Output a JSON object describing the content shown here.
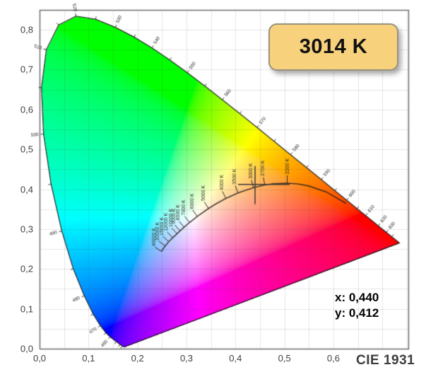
{
  "badge": {
    "label": "3014 K"
  },
  "readout": {
    "x": "x: 0,440",
    "y": "y: 0,412"
  },
  "caption": "CIE 1931",
  "colors": {
    "badge_fill": "#f7d17c",
    "badge_border": "#98927e",
    "grid": "rgba(80,80,80,0.14)",
    "plot_border": "#6f6f6f",
    "locus_outline": "rgba(25,25,25,0.88)",
    "planckian_curve": "rgba(45,38,30,0.85)",
    "wavelength_text": "#262626",
    "cct_text": "#2f2a24",
    "marker": "#3a3a3a"
  },
  "chart_data": {
    "type": "heatmap",
    "subtype": "cie-1931-xy-chromaticity-diagram",
    "title": "CIE 1931",
    "xlabel": "",
    "ylabel": "",
    "grid": true,
    "grid_step": 0.05,
    "x_axis": {
      "range": [
        0,
        0.753
      ],
      "tick_values": [
        0,
        0.1,
        0.2,
        0.3,
        0.4,
        0.5,
        0.6
      ],
      "tick_labels": [
        "0,0",
        "0,1",
        "0,2",
        "0,3",
        "0,4",
        "0,5",
        "0,6"
      ]
    },
    "y_axis": {
      "range": [
        0,
        0.85
      ],
      "tick_values": [
        0,
        0.1,
        0.2,
        0.3,
        0.4,
        0.5,
        0.6,
        0.7,
        0.8
      ],
      "tick_labels": [
        "0,0",
        "0,1",
        "0,2",
        "0,3",
        "0,4",
        "0,5",
        "0,6",
        "0,7",
        "0,8"
      ]
    },
    "spectral_locus": [
      [
        380,
        0.1741,
        0.005
      ],
      [
        390,
        0.1738,
        0.0049
      ],
      [
        400,
        0.1733,
        0.0048
      ],
      [
        410,
        0.1726,
        0.0048
      ],
      [
        420,
        0.1714,
        0.0051
      ],
      [
        430,
        0.1689,
        0.0069
      ],
      [
        440,
        0.1644,
        0.0109
      ],
      [
        450,
        0.1566,
        0.0177
      ],
      [
        460,
        0.144,
        0.0297
      ],
      [
        465,
        0.1355,
        0.0399
      ],
      [
        470,
        0.1241,
        0.0578
      ],
      [
        475,
        0.1096,
        0.0868
      ],
      [
        480,
        0.0913,
        0.1327
      ],
      [
        485,
        0.0687,
        0.2007
      ],
      [
        490,
        0.0454,
        0.295
      ],
      [
        495,
        0.0235,
        0.4127
      ],
      [
        500,
        0.0082,
        0.5384
      ],
      [
        505,
        0.0039,
        0.6548
      ],
      [
        510,
        0.0139,
        0.7502
      ],
      [
        515,
        0.0389,
        0.812
      ],
      [
        520,
        0.0743,
        0.8338
      ],
      [
        525,
        0.1142,
        0.8262
      ],
      [
        530,
        0.1547,
        0.8059
      ],
      [
        535,
        0.1929,
        0.7816
      ],
      [
        540,
        0.2296,
        0.7543
      ],
      [
        545,
        0.2658,
        0.7243
      ],
      [
        550,
        0.3016,
        0.6923
      ],
      [
        555,
        0.3373,
        0.6589
      ],
      [
        560,
        0.3731,
        0.6245
      ],
      [
        565,
        0.4087,
        0.5896
      ],
      [
        570,
        0.4441,
        0.5547
      ],
      [
        575,
        0.4788,
        0.5202
      ],
      [
        580,
        0.5125,
        0.4866
      ],
      [
        585,
        0.5448,
        0.4544
      ],
      [
        590,
        0.5752,
        0.4242
      ],
      [
        595,
        0.6029,
        0.3965
      ],
      [
        600,
        0.627,
        0.3725
      ],
      [
        605,
        0.6482,
        0.3514
      ],
      [
        610,
        0.6658,
        0.334
      ],
      [
        620,
        0.6915,
        0.3083
      ],
      [
        630,
        0.708,
        0.292
      ],
      [
        640,
        0.719,
        0.2809
      ],
      [
        650,
        0.726,
        0.274
      ],
      [
        700,
        0.7347,
        0.2653
      ]
    ],
    "wavelength_tick_range": [
      430,
      640
    ],
    "wavelength_labels": [
      460,
      470,
      480,
      490,
      500,
      510,
      520,
      530,
      540,
      550,
      560,
      570,
      580,
      590,
      600,
      610,
      620,
      630
    ],
    "planckian_locus": [
      [
        40000,
        0.2487,
        0.2438
      ],
      [
        20000,
        0.2565,
        0.2577
      ],
      [
        15000,
        0.2637,
        0.2683
      ],
      [
        12000,
        0.2719,
        0.2782
      ],
      [
        10000,
        0.2807,
        0.2884
      ],
      [
        9000,
        0.2869,
        0.2956
      ],
      [
        8000,
        0.2952,
        0.3048
      ],
      [
        7000,
        0.3064,
        0.3166
      ],
      [
        6000,
        0.3221,
        0.3318
      ],
      [
        5000,
        0.3451,
        0.3516
      ],
      [
        4500,
        0.3608,
        0.3636
      ],
      [
        4000,
        0.3805,
        0.3768
      ],
      [
        3500,
        0.4053,
        0.3907
      ],
      [
        3000,
        0.4369,
        0.4041
      ],
      [
        2700,
        0.4599,
        0.4106
      ],
      [
        2500,
        0.477,
        0.4137
      ],
      [
        2200,
        0.5056,
        0.4152
      ],
      [
        2000,
        0.5267,
        0.4133
      ],
      [
        1800,
        0.5493,
        0.4082
      ],
      [
        1500,
        0.5857,
        0.3931
      ],
      [
        1200,
        0.626,
        0.364
      ]
    ],
    "cct_labels": [
      [
        40000,
        "40000 K"
      ],
      [
        20000,
        "20000 K"
      ],
      [
        15000,
        "15000 K"
      ],
      [
        12000,
        "12000 K"
      ],
      [
        10000,
        "10000 K"
      ],
      [
        9000,
        "9000 K"
      ],
      [
        8000,
        "8000 K"
      ],
      [
        7000,
        "7000 K"
      ],
      [
        6000,
        "6000 K"
      ],
      [
        5000,
        "5000 K"
      ],
      [
        4000,
        "4000 K"
      ],
      [
        3500,
        "3500 K"
      ],
      [
        3000,
        "3000 K"
      ],
      [
        2700,
        "2700 K"
      ],
      [
        2200,
        "2200 K"
      ]
    ],
    "marker": {
      "x": 0.44,
      "y": 0.412,
      "cct": "3014 K"
    }
  }
}
